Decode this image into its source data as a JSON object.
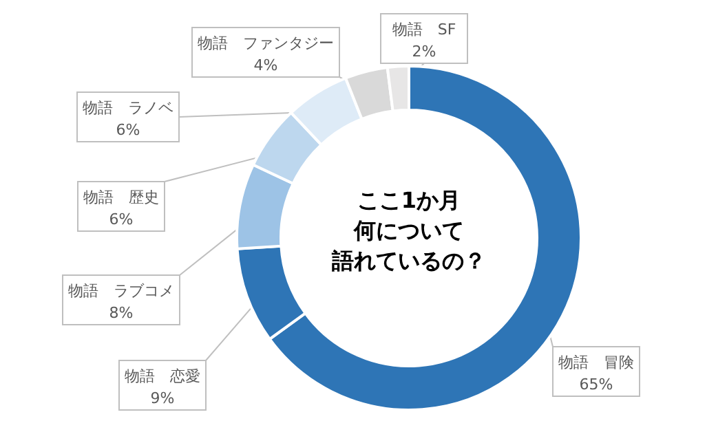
{
  "chart_data": {
    "type": "donut",
    "title": "ここ1か月何について語れているの？",
    "categories": [
      "物語　冒険",
      "物語　恋愛",
      "物語　ラブコメ",
      "物語　歴史",
      "物語　ラノベ",
      "物語　ファンタジー",
      "物語　SF"
    ],
    "values": [
      65,
      9,
      8,
      6,
      6,
      4,
      2
    ],
    "value_labels": [
      "65%",
      "9%",
      "8%",
      "6%",
      "6%",
      "4%",
      "2%"
    ],
    "colors": [
      "#2e75b6",
      "#2e75b6",
      "#9dc3e6",
      "#bdd7ee",
      "#deebf7",
      "#d9d9d9",
      "#e7e6e6"
    ]
  }
}
